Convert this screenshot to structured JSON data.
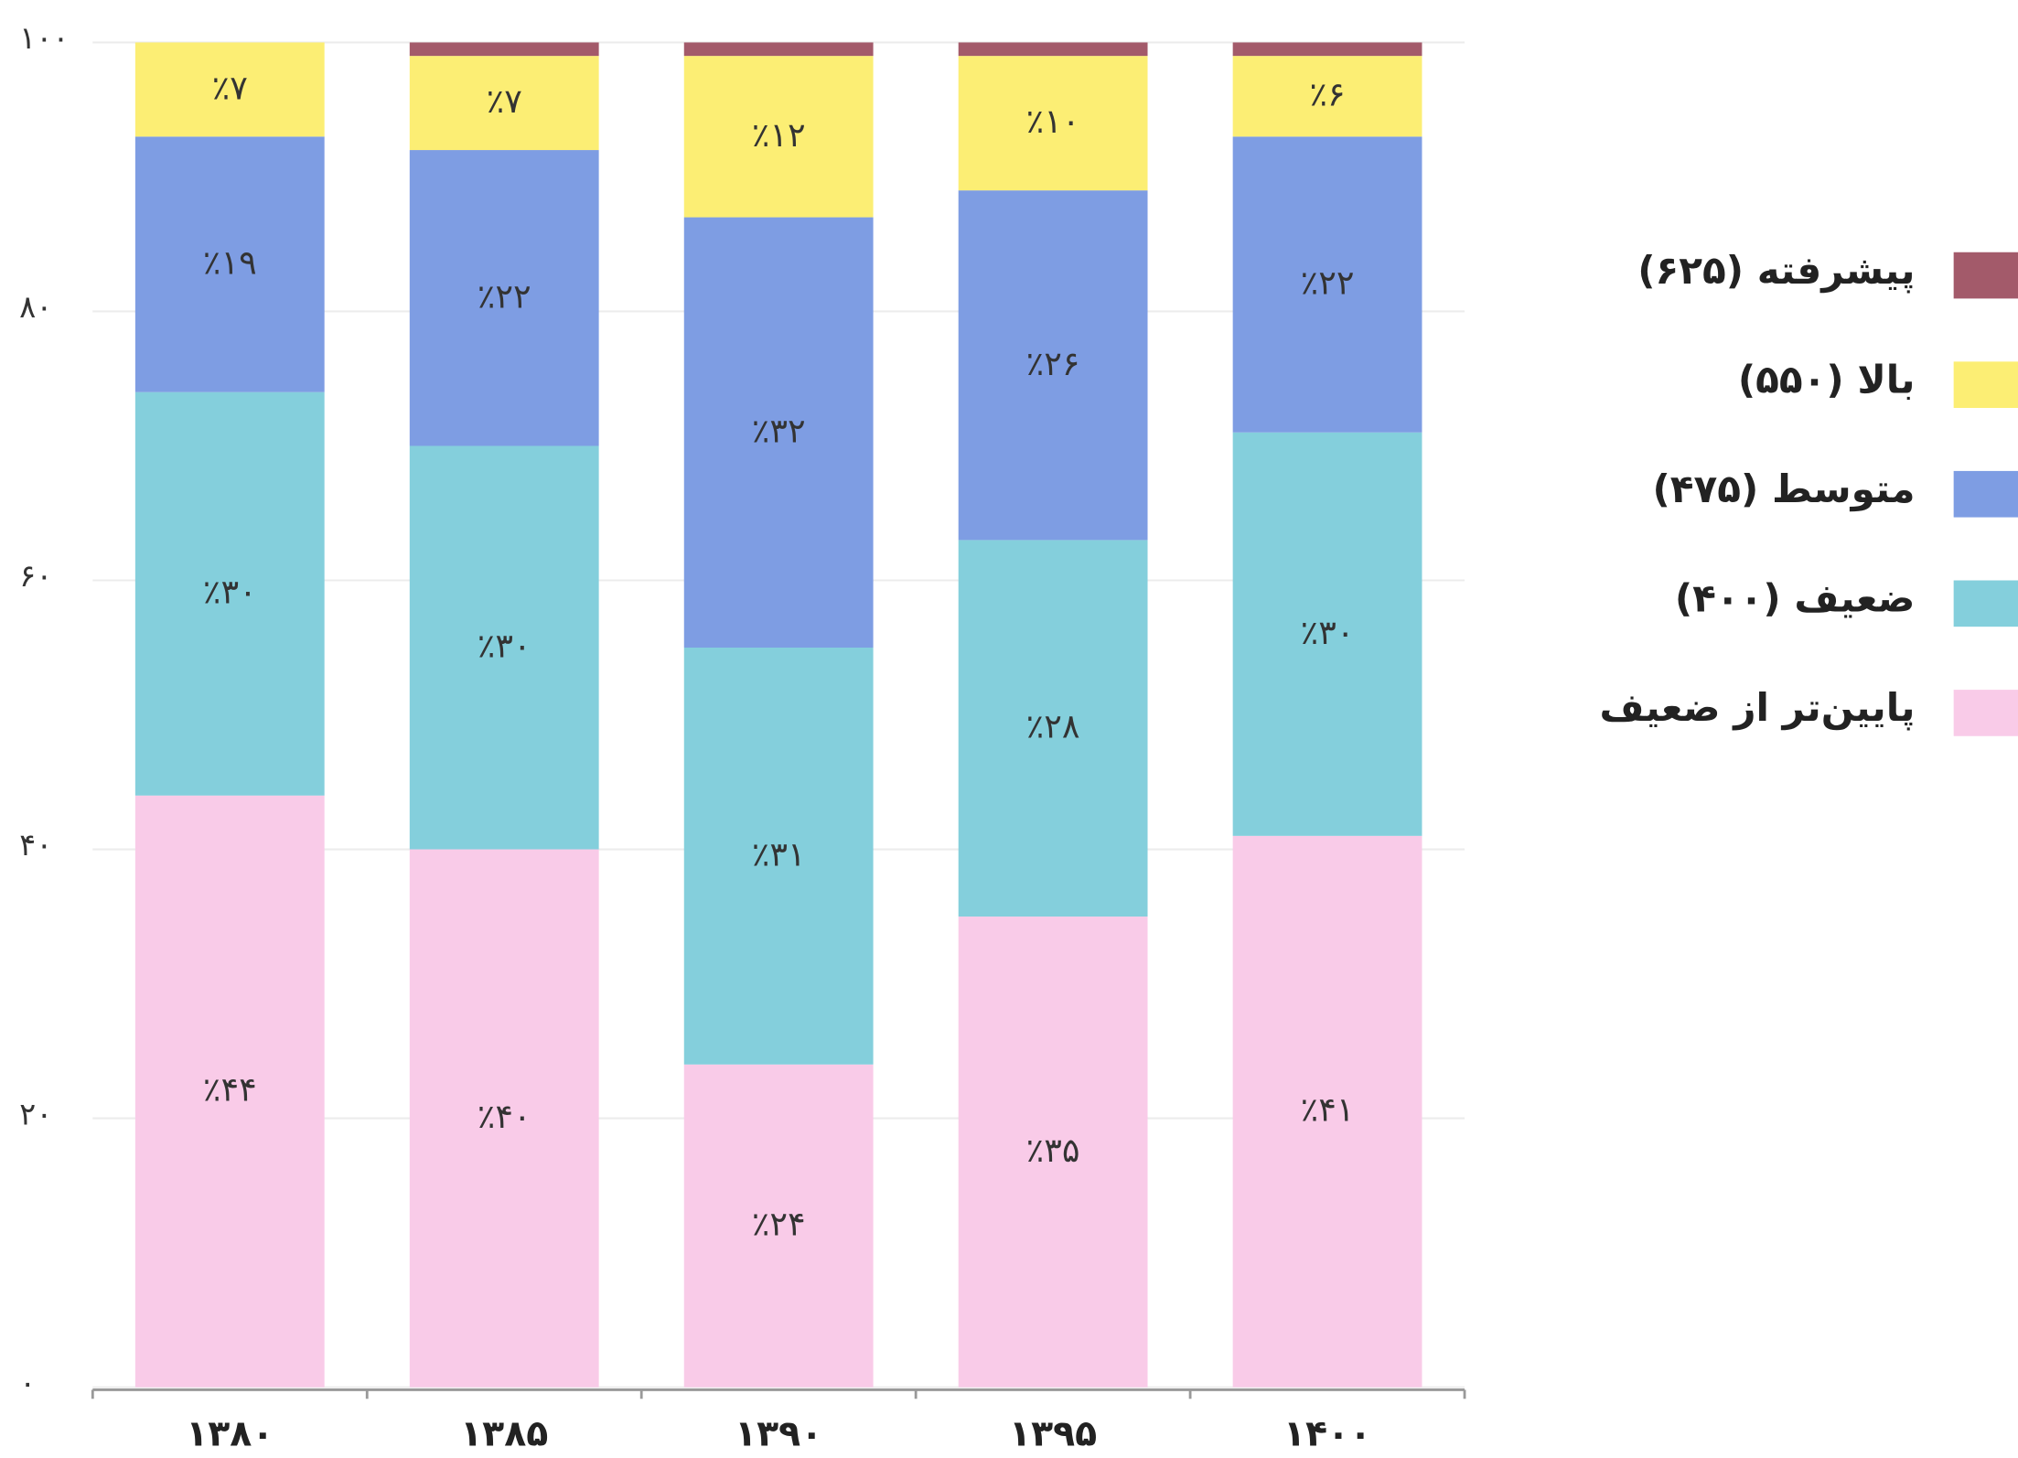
{
  "chart_data": {
    "type": "stacked_bar",
    "categories": [
      "۱۳۸۰",
      "۱۳۸۵",
      "۱۳۹۰",
      "۱۳۹۵",
      "۱۴۰۰"
    ],
    "series": [
      {
        "name": "پایین‌تر از ضعیف",
        "color": "#f9cbe8",
        "values": [
          44,
          40,
          24,
          35,
          41
        ],
        "value_labels": [
          "٪۴۴",
          "٪۴۰",
          "٪۲۴",
          "٪۳۵",
          "٪۴۱"
        ]
      },
      {
        "name": "ضعیف (۴۰۰)",
        "color": "#84cfdc",
        "values": [
          30,
          30,
          31,
          28,
          30
        ],
        "value_labels": [
          "٪۳۰",
          "٪۳۰",
          "٪۳۱",
          "٪۲۸",
          "٪۳۰"
        ]
      },
      {
        "name": "متوسط (۴۷۵)",
        "color": "#7e9de3",
        "values": [
          19,
          22,
          32,
          26,
          22
        ],
        "value_labels": [
          "٪۱۹",
          "٪۲۲",
          "٪۳۲",
          "٪۲۶",
          "٪۲۲"
        ]
      },
      {
        "name": "بالا (۵۵۰)",
        "color": "#fcee74",
        "values": [
          7,
          7,
          12,
          10,
          6
        ],
        "value_labels": [
          "٪۷",
          "٪۷",
          "٪۱۲",
          "٪۱۰",
          "٪۶"
        ]
      },
      {
        "name": "پیشرفته (۶۲۵)",
        "color": "#a35a6a",
        "values": [
          0,
          1,
          1,
          1,
          1
        ]
      }
    ],
    "ylim": [
      0,
      100
    ],
    "yticks": [
      {
        "value": 0,
        "label": "۰"
      },
      {
        "value": 20,
        "label": "۲۰"
      },
      {
        "value": 40,
        "label": "۴۰"
      },
      {
        "value": 60,
        "label": "۶۰"
      },
      {
        "value": 80,
        "label": "۸۰"
      },
      {
        "value": 100,
        "label": "۱۰۰"
      }
    ],
    "grid": true,
    "legend": "right"
  }
}
